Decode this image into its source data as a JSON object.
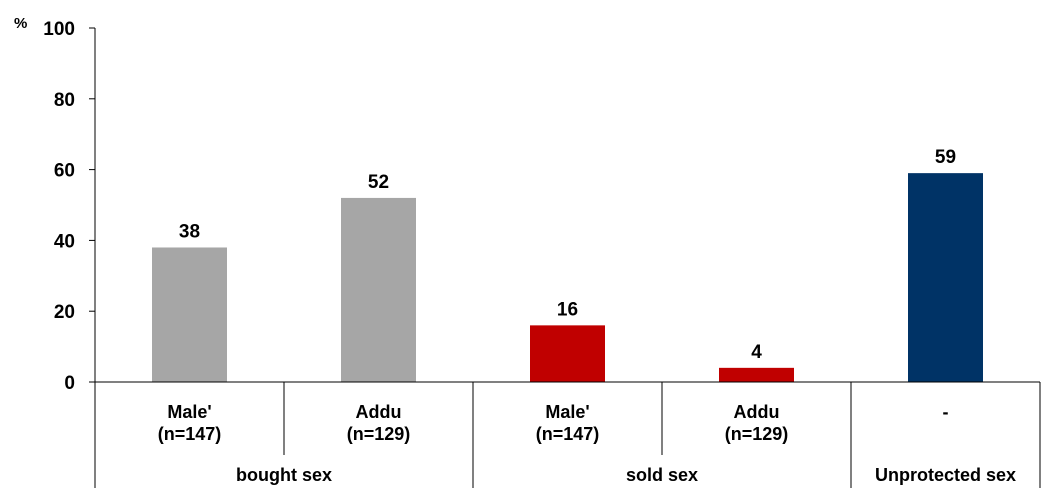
{
  "chart_data": {
    "type": "bar",
    "ylabel": "%",
    "ylim": [
      0,
      100
    ],
    "yticks": [
      0,
      20,
      40,
      60,
      80,
      100
    ],
    "grid": false,
    "legend": "none",
    "categories": [
      {
        "line1": "Male'",
        "line2": "(n=147)",
        "group": 0,
        "value": 38,
        "color": "#A6A6A6"
      },
      {
        "line1": "Addu",
        "line2": "(n=129)",
        "group": 0,
        "value": 52,
        "color": "#A6A6A6"
      },
      {
        "line1": "Male'",
        "line2": "(n=147)",
        "group": 1,
        "value": 16,
        "color": "#C00000"
      },
      {
        "line1": "Addu",
        "line2": "(n=129)",
        "group": 1,
        "value": 4,
        "color": "#C00000"
      },
      {
        "line1": "-",
        "line2": "",
        "group": 2,
        "value": 59,
        "color": "#003366"
      }
    ],
    "groups": [
      "bought sex",
      "sold sex",
      "Unprotected sex"
    ]
  }
}
